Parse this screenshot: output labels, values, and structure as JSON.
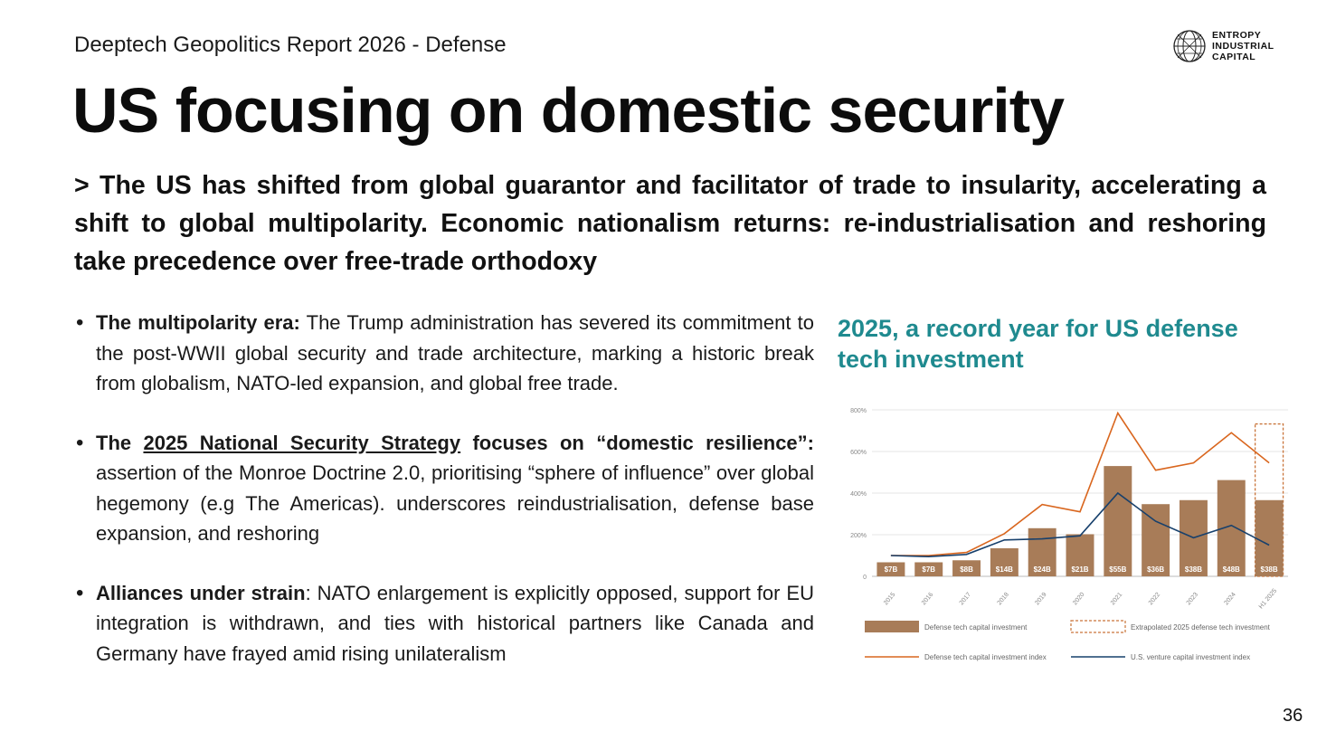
{
  "header": {
    "report_label": "Deeptech Geopolitics Report 2026 - Defense",
    "logo_lines": [
      "ENTROPY",
      "INDUSTRIAL",
      "CAPITAL"
    ],
    "logo_icon": "globe-icon"
  },
  "title": "US focusing on domestic security",
  "lead": "> The US has shifted from global guarantor and facilitator of trade to insularity, accelerating a shift to global multipolarity. Economic nationalism returns: re-industrialisation and reshoring take precedence over free-trade orthodoxy",
  "bullets": [
    {
      "bold": "The multipolarity era:",
      "text": " The Trump administration has severed its commitment to the post-WWII global security and trade architecture, marking a historic break from globalism, NATO-led expansion, and global free trade."
    },
    {
      "bold_prefix": "The ",
      "link": "2025 National Security Strategy",
      "bold_suffix": " focuses on “domestic resilience”:",
      "text": " assertion of the Monroe Doctrine 2.0, prioritising “sphere of influence” over global hegemony (e.g The Americas).  underscores reindustrialisation, defense base expansion, and reshoring"
    },
    {
      "bold": "Alliances under strain",
      "text": ": NATO enlargement is explicitly opposed, support for EU integration is withdrawn, and ties with historical partners like Canada and Germany have frayed amid rising unilateralism"
    }
  ],
  "chart_title": "2025, a record year for US defense tech investment",
  "chart_data": {
    "type": "bar",
    "title": "2025, a record year for US defense tech investment",
    "categories": [
      "2015",
      "2016",
      "2017",
      "2018",
      "2019",
      "2020",
      "2021",
      "2022",
      "2023",
      "2024",
      "H1 2025"
    ],
    "bar_labels": [
      "$7B",
      "$7B",
      "$8B",
      "$14B",
      "$24B",
      "$21B",
      "$55B",
      "$36B",
      "$38B",
      "$48B",
      "$38B"
    ],
    "values": [
      7,
      7,
      8,
      14,
      24,
      21,
      55,
      36,
      38,
      48,
      38
    ],
    "extrapolated_2025": 76,
    "series": [
      {
        "name": "Defense tech capital investment index",
        "values": [
          100,
          100,
          115,
          205,
          345,
          310,
          785,
          510,
          545,
          690,
          545
        ]
      },
      {
        "name": "U.S. venture capital investment index",
        "values": [
          100,
          95,
          105,
          175,
          180,
          195,
          400,
          265,
          185,
          245,
          150
        ]
      }
    ],
    "yticks": [
      "0",
      "200%",
      "400%",
      "600%",
      "800%"
    ],
    "ylim": [
      0,
      800
    ],
    "legend": [
      {
        "label": "Defense tech capital investment",
        "kind": "bar"
      },
      {
        "label": "Extrapolated 2025 defense tech investment",
        "kind": "dashed-box"
      },
      {
        "label": "Defense tech capital investment index",
        "kind": "line"
      },
      {
        "label": "U.S. venture capital investment index",
        "kind": "line"
      }
    ],
    "colors": {
      "bar": "#a87c58",
      "orange": "#d9661e",
      "navy": "#17406c",
      "dashed": "#c9743a"
    }
  },
  "page_number": "36"
}
